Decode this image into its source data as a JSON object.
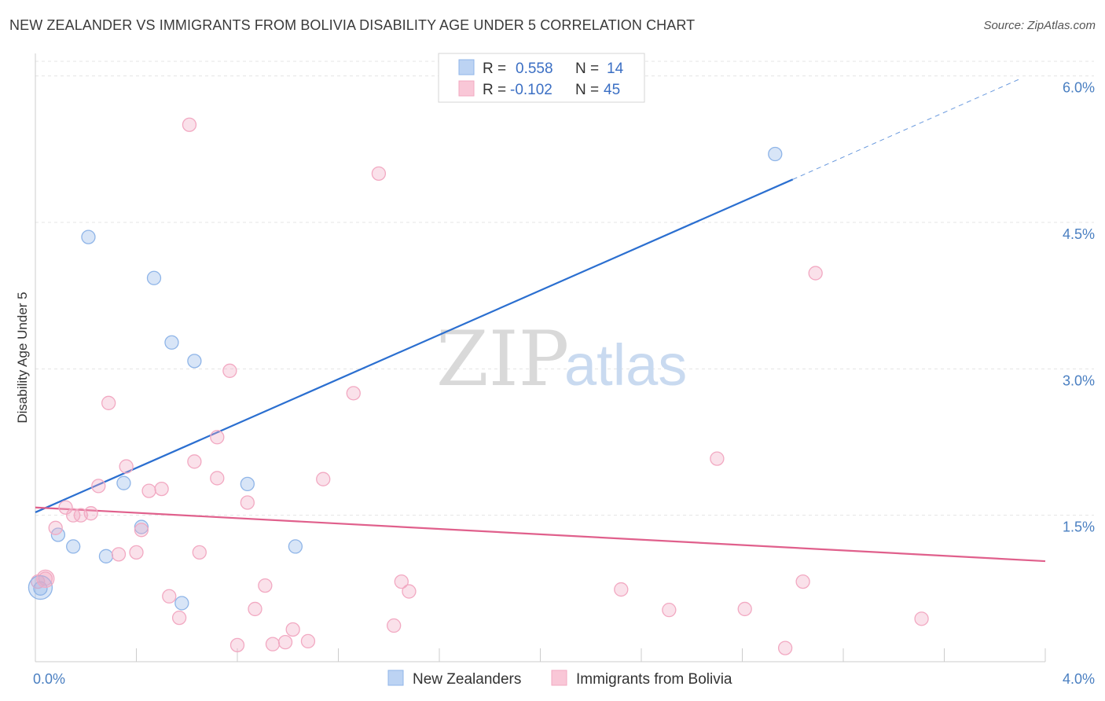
{
  "title": "NEW ZEALANDER VS IMMIGRANTS FROM BOLIVIA DISABILITY AGE UNDER 5 CORRELATION CHART",
  "source": "Source: ZipAtlas.com",
  "watermark": {
    "zip": "ZIP",
    "atlas": "atlas"
  },
  "chart_data": {
    "type": "scatter",
    "title": "NEW ZEALANDER VS IMMIGRANTS FROM BOLIVIA DISABILITY AGE UNDER 5 CORRELATION CHART",
    "xlabel": "",
    "ylabel": "Disability Age Under 5",
    "xlim": [
      0,
      4.0
    ],
    "ylim": [
      0,
      6.15
    ],
    "x_tick_labels": [
      "0.0%",
      "4.0%"
    ],
    "y_ticks": [
      1.5,
      3.0,
      4.5,
      6.0
    ],
    "y_tick_labels": [
      "1.5%",
      "3.0%",
      "4.5%",
      "6.0%"
    ],
    "grid": true,
    "legend_placement": "top-center",
    "series": [
      {
        "name": "New Zealanders",
        "color": "#8fb5e8",
        "line_color": "#2b6fd0",
        "r": "0.558",
        "n": "14",
        "points": [
          [
            0.02,
            0.75
          ],
          [
            0.09,
            1.3
          ],
          [
            0.15,
            1.18
          ],
          [
            0.21,
            4.35
          ],
          [
            0.28,
            1.08
          ],
          [
            0.35,
            1.83
          ],
          [
            0.42,
            1.38
          ],
          [
            0.47,
            3.93
          ],
          [
            0.54,
            3.27
          ],
          [
            0.58,
            0.6
          ],
          [
            0.63,
            3.08
          ],
          [
            0.84,
            1.82
          ],
          [
            1.03,
            1.18
          ],
          [
            2.93,
            5.2
          ]
        ],
        "trend": {
          "x0": 0.0,
          "y0": 1.53,
          "x1": 3.0,
          "y1": 4.94,
          "dash_x1": 3.9,
          "dash_y1": 5.97
        }
      },
      {
        "name": "Immigrants from Bolivia",
        "color": "#f2a9c2",
        "line_color": "#e0608c",
        "r": "-0.102",
        "n": "45",
        "points": [
          [
            0.04,
            0.85
          ],
          [
            0.08,
            1.37
          ],
          [
            0.12,
            1.58
          ],
          [
            0.15,
            1.5
          ],
          [
            0.18,
            1.5
          ],
          [
            0.22,
            1.52
          ],
          [
            0.25,
            1.8
          ],
          [
            0.29,
            2.65
          ],
          [
            0.33,
            1.1
          ],
          [
            0.36,
            2.0
          ],
          [
            0.4,
            1.12
          ],
          [
            0.42,
            1.35
          ],
          [
            0.45,
            1.75
          ],
          [
            0.5,
            1.77
          ],
          [
            0.53,
            0.67
          ],
          [
            0.57,
            0.45
          ],
          [
            0.61,
            5.5
          ],
          [
            0.63,
            2.05
          ],
          [
            0.65,
            1.12
          ],
          [
            0.72,
            1.88
          ],
          [
            0.72,
            2.3
          ],
          [
            0.77,
            2.98
          ],
          [
            0.8,
            0.17
          ],
          [
            0.84,
            1.63
          ],
          [
            0.87,
            0.54
          ],
          [
            0.91,
            0.78
          ],
          [
            0.94,
            0.18
          ],
          [
            0.99,
            0.2
          ],
          [
            1.02,
            0.33
          ],
          [
            1.08,
            0.21
          ],
          [
            1.14,
            1.87
          ],
          [
            1.26,
            2.75
          ],
          [
            1.36,
            5.0
          ],
          [
            1.42,
            0.37
          ],
          [
            1.45,
            0.82
          ],
          [
            1.48,
            0.72
          ],
          [
            2.32,
            0.74
          ],
          [
            2.51,
            0.53
          ],
          [
            2.7,
            2.08
          ],
          [
            2.81,
            0.54
          ],
          [
            2.97,
            0.14
          ],
          [
            3.04,
            0.82
          ],
          [
            3.09,
            3.98
          ],
          [
            3.51,
            0.44
          ],
          [
            0.01,
            0.82
          ]
        ],
        "trend": {
          "x0": 0.0,
          "y0": 1.58,
          "x1": 4.0,
          "y1": 1.03
        }
      }
    ]
  },
  "legend": {
    "r_label": "R =",
    "n_label": "N ="
  }
}
